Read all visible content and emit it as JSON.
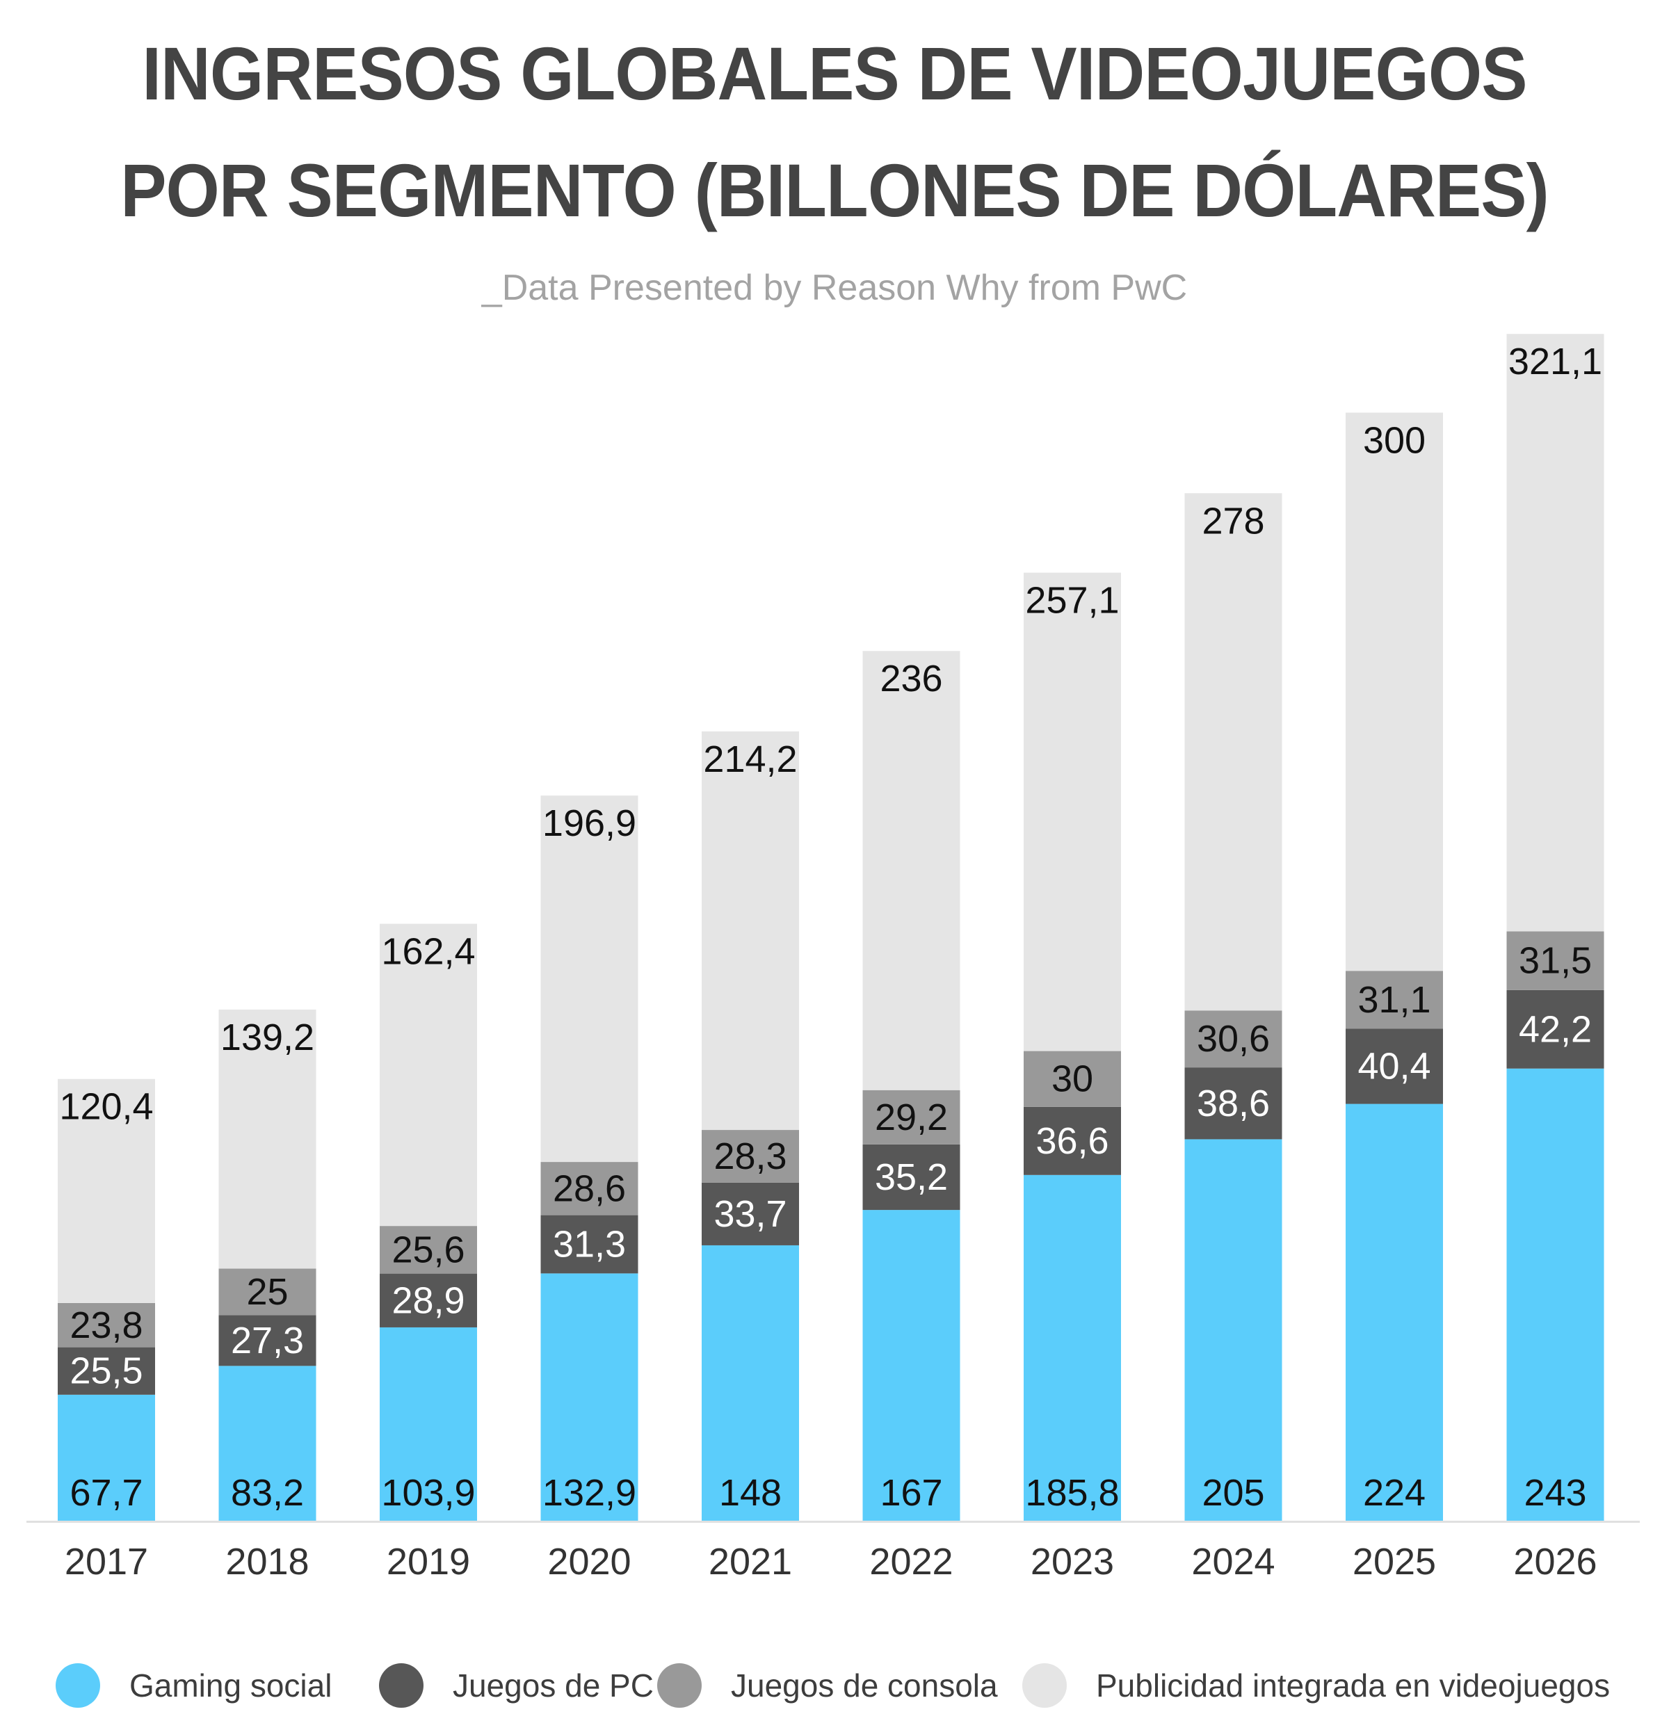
{
  "title": {
    "line1": "INGRESOS GLOBALES DE VIDEOJUEGOS",
    "line2": "POR SEGMENTO (BILLONES DE DÓLARES)"
  },
  "subtitle": "_Data Presented by Reason Why from PwC",
  "colors": {
    "gaming_social": "#5bcdfb",
    "juegos_pc": "#575757",
    "juegos_consola": "#999999",
    "publicidad": "#e5e5e5",
    "title": "#444444",
    "axis": "#e0e0e0"
  },
  "legend": [
    {
      "label": "Gaming social",
      "color": "#5bcdfb"
    },
    {
      "label": "Juegos de PC",
      "color": "#575757"
    },
    {
      "label": "Juegos de consola",
      "color": "#999999"
    },
    {
      "label": "Publicidad integrada en videojuegos",
      "color": "#e5e5e5"
    }
  ],
  "chart_data": {
    "type": "bar",
    "stacked": true,
    "title": "INGRESOS GLOBALES DE VIDEOJUEGOS POR SEGMENTO (BILLONES DE DÓLARES)",
    "subtitle": "_Data Presented by Reason Why from PwC",
    "categories": [
      "2017",
      "2018",
      "2019",
      "2020",
      "2021",
      "2022",
      "2023",
      "2024",
      "2025",
      "2026"
    ],
    "series": [
      {
        "name": "Gaming social",
        "color": "#5bcdfb",
        "label_color": "#111111",
        "values": [
          67.7,
          83.2,
          103.9,
          132.9,
          148,
          167,
          185.8,
          205,
          224,
          243
        ],
        "labels": [
          "67,7",
          "83,2",
          "103,9",
          "132,9",
          "148",
          "167",
          "185,8",
          "205",
          "224",
          "243"
        ]
      },
      {
        "name": "Juegos de PC",
        "color": "#575757",
        "label_color": "#ffffff",
        "values": [
          25.5,
          27.3,
          28.9,
          31.3,
          33.7,
          35.2,
          36.6,
          38.6,
          40.4,
          42.2
        ],
        "labels": [
          "25,5",
          "27,3",
          "28,9",
          "31,3",
          "33,7",
          "35,2",
          "36,6",
          "38,6",
          "40,4",
          "42,2"
        ]
      },
      {
        "name": "Juegos de consola",
        "color": "#999999",
        "label_color": "#111111",
        "values": [
          23.8,
          25,
          25.6,
          28.6,
          28.3,
          29.2,
          30,
          30.6,
          31.1,
          31.5
        ],
        "labels": [
          "23,8",
          "25",
          "25,6",
          "28,6",
          "28,3",
          "29,2",
          "30",
          "30,6",
          "31,1",
          "31,5"
        ]
      },
      {
        "name": "Publicidad integrada en videojuegos",
        "color": "#e5e5e5",
        "label_color": "#111111",
        "values": [
          120.4,
          139.2,
          162.4,
          196.9,
          214.2,
          236,
          257.1,
          278,
          300,
          321.1
        ],
        "labels": [
          "120,4",
          "139,2",
          "162,4",
          "196,9",
          "214,2",
          "236",
          "257,1",
          "278",
          "300",
          "321,1"
        ]
      }
    ],
    "ylim": [
      0,
      640
    ],
    "grid": false,
    "legend_position": "bottom"
  }
}
